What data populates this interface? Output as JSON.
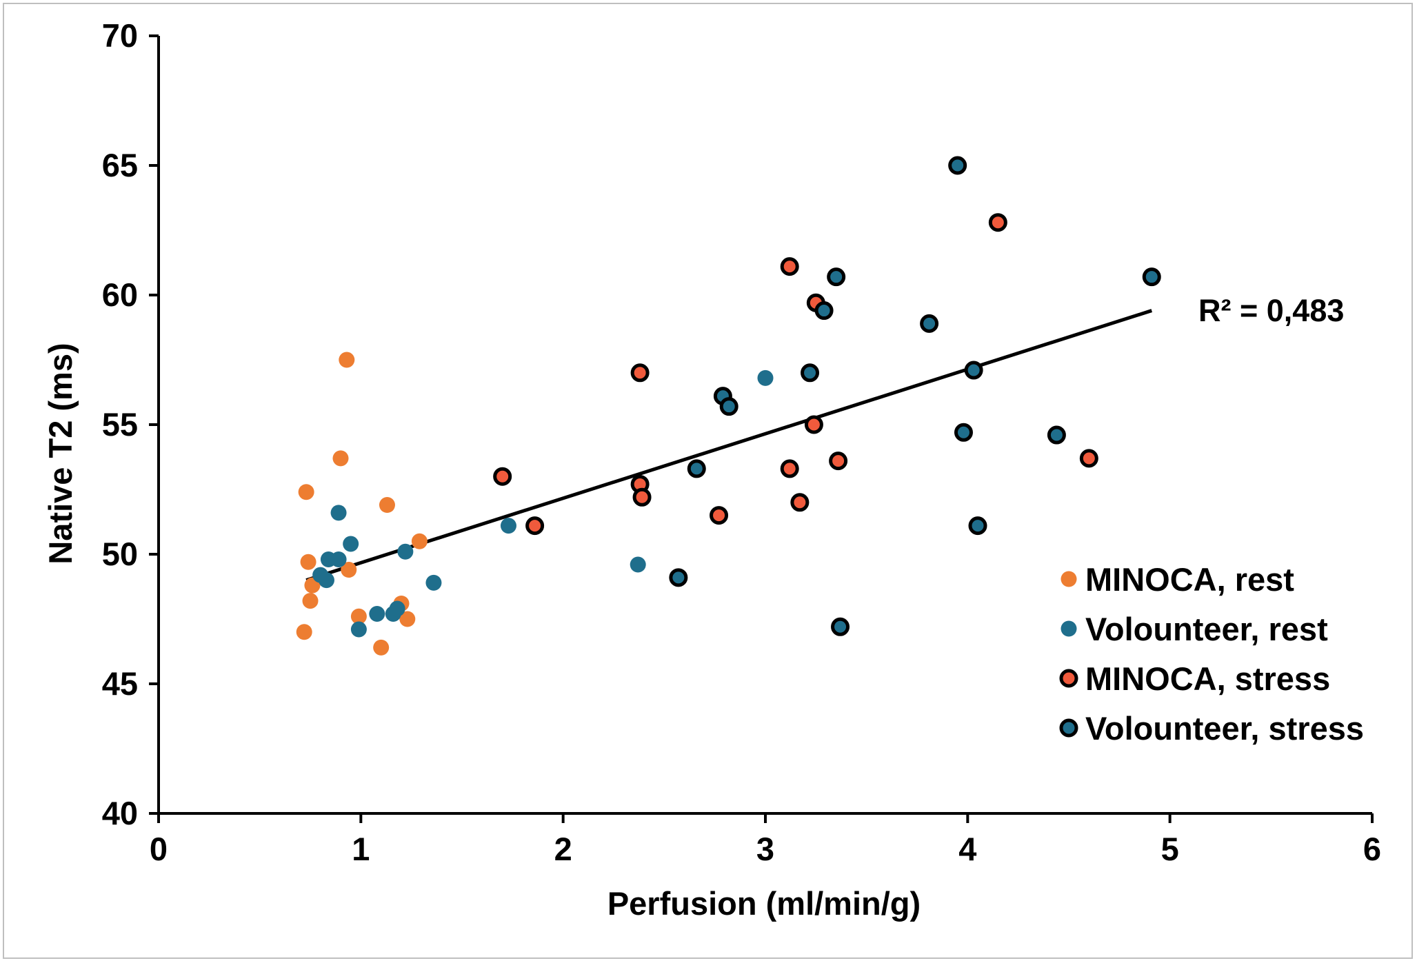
{
  "chart_data": {
    "type": "scatter",
    "title": "",
    "xlabel": "Perfusion (ml/min/g)",
    "ylabel": "Native T2 (ms)",
    "xlim": [
      0,
      6
    ],
    "ylim": [
      40,
      70
    ],
    "x_ticks": [
      "0",
      "1",
      "2",
      "3",
      "4",
      "5",
      "6"
    ],
    "y_ticks": [
      "40",
      "45",
      "50",
      "55",
      "60",
      "65",
      "70"
    ],
    "grid": false,
    "legend_position": "bottom-right",
    "series": [
      {
        "name": "MINOCA, rest",
        "color": "#ED7D31",
        "marker": "filled-circle",
        "points": [
          [
            0.73,
            52.4
          ],
          [
            0.74,
            49.7
          ],
          [
            0.76,
            48.8
          ],
          [
            0.75,
            48.2
          ],
          [
            0.72,
            47.0
          ],
          [
            0.93,
            57.5
          ],
          [
            0.9,
            53.7
          ],
          [
            0.94,
            49.4
          ],
          [
            0.99,
            47.6
          ],
          [
            1.13,
            51.9
          ],
          [
            1.29,
            50.5
          ],
          [
            1.2,
            48.1
          ],
          [
            1.23,
            47.5
          ],
          [
            1.1,
            46.4
          ]
        ]
      },
      {
        "name": "Volounteer, rest",
        "color": "#1F6E8C",
        "marker": "filled-circle",
        "points": [
          [
            0.89,
            51.6
          ],
          [
            0.95,
            50.4
          ],
          [
            0.84,
            49.8
          ],
          [
            0.89,
            49.8
          ],
          [
            0.8,
            49.2
          ],
          [
            0.83,
            49.0
          ],
          [
            0.99,
            47.1
          ],
          [
            1.08,
            47.7
          ],
          [
            1.16,
            47.7
          ],
          [
            1.18,
            47.9
          ],
          [
            1.22,
            50.1
          ],
          [
            1.36,
            48.9
          ],
          [
            1.73,
            51.1
          ],
          [
            2.37,
            49.6
          ],
          [
            3.0,
            56.8
          ]
        ]
      },
      {
        "name": "MINOCA, stress",
        "color": "#F05A3C",
        "marker": "circle-black-outline",
        "points": [
          [
            1.7,
            53.0
          ],
          [
            1.86,
            51.1
          ],
          [
            2.38,
            57.0
          ],
          [
            2.38,
            52.7
          ],
          [
            2.39,
            52.2
          ],
          [
            2.77,
            51.5
          ],
          [
            3.12,
            61.1
          ],
          [
            3.25,
            59.7
          ],
          [
            3.12,
            53.3
          ],
          [
            3.17,
            52.0
          ],
          [
            3.24,
            55.0
          ],
          [
            3.36,
            53.6
          ],
          [
            4.15,
            62.8
          ],
          [
            4.6,
            53.7
          ]
        ]
      },
      {
        "name": "Volounteer, stress",
        "color": "#1F6E8C",
        "marker": "circle-black-outline",
        "points": [
          [
            2.57,
            49.1
          ],
          [
            2.66,
            53.3
          ],
          [
            2.79,
            56.1
          ],
          [
            2.82,
            55.7
          ],
          [
            3.22,
            57.0
          ],
          [
            3.29,
            59.4
          ],
          [
            3.35,
            60.7
          ],
          [
            3.37,
            47.2
          ],
          [
            3.81,
            58.9
          ],
          [
            3.95,
            65.0
          ],
          [
            3.98,
            54.7
          ],
          [
            4.03,
            57.1
          ],
          [
            4.05,
            51.1
          ],
          [
            4.44,
            54.6
          ],
          [
            4.91,
            60.7
          ]
        ]
      }
    ],
    "trendline": {
      "type": "linear",
      "color": "#000000",
      "x_range": [
        0.73,
        4.91
      ],
      "y_range": [
        49.0,
        59.4
      ],
      "label": "R² = 0,483"
    }
  }
}
